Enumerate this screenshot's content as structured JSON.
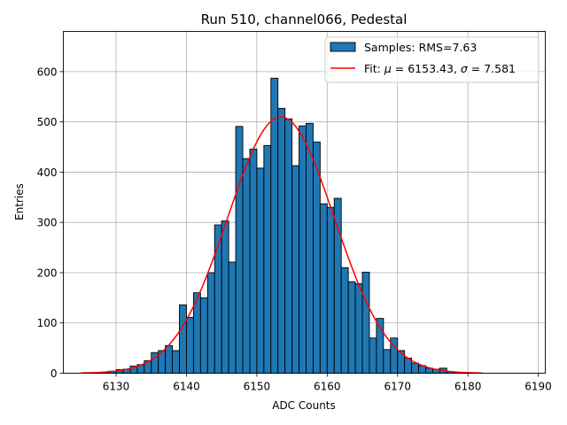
{
  "chart_data": {
    "type": "bar",
    "title": "Run 510, channel066, Pedestal",
    "xlabel": "ADC Counts",
    "ylabel": "Entries",
    "xlim": [
      6122.5,
      6191
    ],
    "ylim": [
      0,
      680
    ],
    "xticks": [
      6130,
      6140,
      6150,
      6160,
      6170,
      6180,
      6190
    ],
    "yticks": [
      0,
      100,
      200,
      300,
      400,
      500,
      600
    ],
    "grid": true,
    "legend_position": "top-right",
    "bar_color": "#1f77b4",
    "fit_color": "#ff0000",
    "bin_width": 1,
    "bin_starts": [
      6127,
      6128,
      6129,
      6130,
      6131,
      6132,
      6133,
      6134,
      6135,
      6136,
      6137,
      6138,
      6139,
      6140,
      6141,
      6142,
      6143,
      6144,
      6145,
      6146,
      6147,
      6148,
      6149,
      6150,
      6151,
      6152,
      6153,
      6154,
      6155,
      6156,
      6157,
      6158,
      6159,
      6160,
      6161,
      6162,
      6163,
      6164,
      6165,
      6166,
      6167,
      6168,
      6169,
      6170,
      6171,
      6172,
      6173,
      6174,
      6175,
      6176,
      6177,
      6178,
      6179,
      6180,
      6181
    ],
    "values": [
      1,
      2,
      4,
      7,
      8,
      14,
      17,
      25,
      41,
      45,
      55,
      45,
      136,
      111,
      160,
      150,
      200,
      295,
      303,
      221,
      491,
      427,
      446,
      408,
      453,
      587,
      527,
      506,
      413,
      492,
      497,
      460,
      337,
      330,
      348,
      210,
      182,
      178,
      201,
      70,
      109,
      47,
      70,
      45,
      30,
      20,
      15,
      10,
      8,
      10,
      3,
      1,
      1,
      0,
      0
    ],
    "legend": [
      {
        "label": "Samples: RMS=7.63",
        "kind": "patch"
      },
      {
        "label_prefix": "Fit: ",
        "mu_symbol": "μ",
        "mu_text": " = 6153.43, ",
        "sigma_symbol": "σ",
        "sigma_text": " = 7.581",
        "kind": "line"
      }
    ],
    "fit": {
      "type": "gaussian",
      "mu": 6153.43,
      "sigma": 7.581,
      "amplitude": 510,
      "x_range": [
        6125,
        6182
      ]
    }
  }
}
